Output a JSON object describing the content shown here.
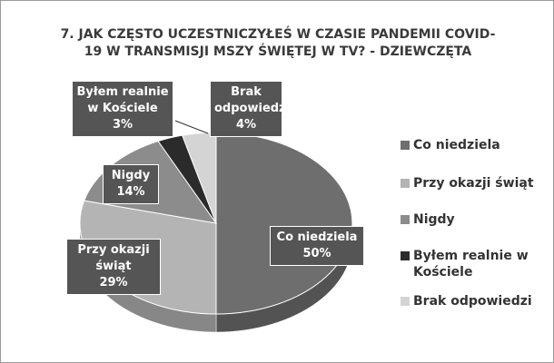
{
  "chart_data": {
    "type": "pie",
    "title": "7. JAK CZĘSTO UCZESTNICZYŁEŚ W CZASIE PANDEMII COVID-19 W TRANSMISJI MSZY ŚWIĘTEJ W TV? - DZIEWCZĘTA",
    "categories": [
      "Co niedziela",
      "Przy okazji świąt",
      "Nigdy",
      "Byłem realnie w Kościele",
      "Brak odpowiedzi"
    ],
    "values": [
      50,
      29,
      14,
      3,
      4
    ],
    "value_labels": [
      "50%",
      "29%",
      "14%",
      "3%",
      "4%"
    ],
    "colors": [
      "#6e6e6e",
      "#b4b4b4",
      "#8c8c8c",
      "#2b2b2b",
      "#d4d4d4"
    ],
    "legend": "right"
  }
}
